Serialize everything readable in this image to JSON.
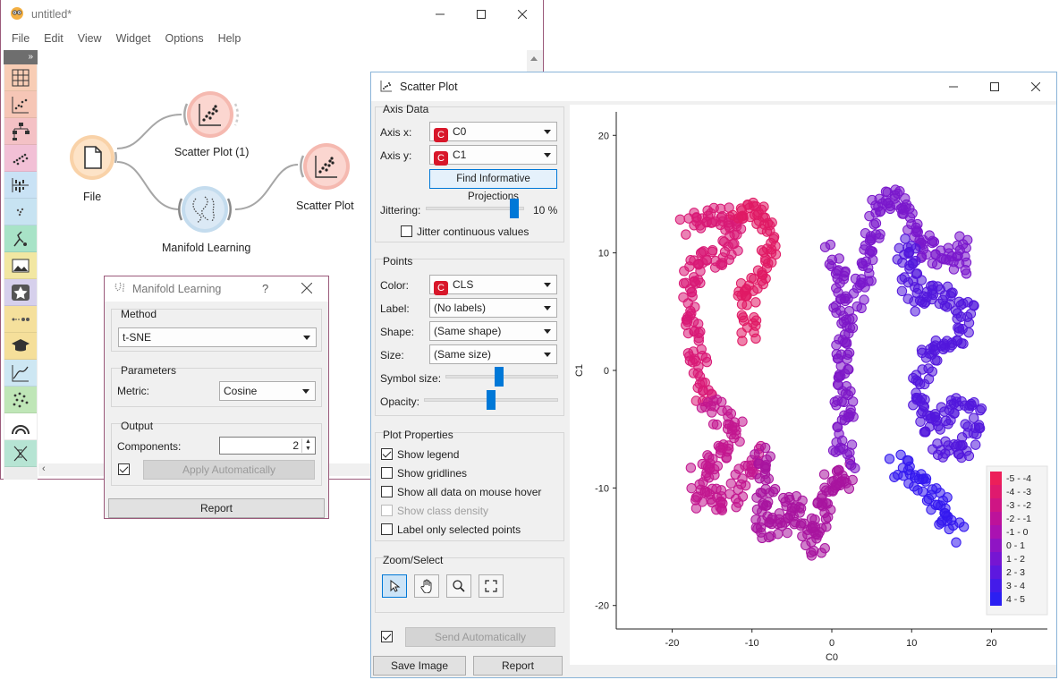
{
  "main_window": {
    "title": "untitled*",
    "menu": [
      "File",
      "Edit",
      "View",
      "Widget",
      "Options",
      "Help"
    ],
    "toolbox_toggle": "»",
    "toolbox_icons": [
      "data-table-icon",
      "scatter-plot-icon",
      "tree-icon",
      "tsne-icon",
      "distribution-icon",
      "scatter-small-icon",
      "rank-icon",
      "image-icon",
      "star-icon",
      "pipe-icon",
      "graduation-icon",
      "line-chart-icon",
      "dots-icon",
      "rainbow-icon",
      "dna-icon"
    ],
    "toolbox_colors": [
      "#f8cdb5",
      "#f6c6b6",
      "#f4c1c5",
      "#f2c0d6",
      "#c9e2f5",
      "#c7e3f2",
      "#a8e3c7",
      "#f2e7a2",
      "#d6d0ec",
      "#f5e09c",
      "#f5df9a",
      "#cde7f3",
      "#bfe6b7",
      "#ffffff",
      "#b6e4d3"
    ],
    "nodes": {
      "file": "File",
      "scatter1": "Scatter Plot (1)",
      "manifold": "Manifold Learning",
      "scatter": "Scatter Plot"
    }
  },
  "manifold_dialog": {
    "title": "Manifold Learning",
    "help": "?",
    "method_group": "Method",
    "method_value": "t-SNE",
    "parameters_group": "Parameters",
    "metric_label": "Metric:",
    "metric_value": "Cosine",
    "output_group": "Output",
    "components_label": "Components:",
    "components_value": "2",
    "apply_label": "Apply Automatically",
    "report_label": "Report"
  },
  "scatter_window": {
    "title": "Scatter Plot",
    "axis_data_group": "Axis Data",
    "axis_x_label": "Axis x:",
    "axis_x_value": "C0",
    "axis_y_label": "Axis y:",
    "axis_y_value": "C1",
    "var_badge": "C",
    "find_projections": "Find Informative Projections",
    "jittering_label": "Jittering:",
    "jittering_value": "10 %",
    "jittering_level": 0.9,
    "jitter_continuous": "Jitter continuous values",
    "points_group": "Points",
    "color_label": "Color:",
    "color_value": "CLS",
    "label_label": "Label:",
    "label_value": "(No labels)",
    "shape_label": "Shape:",
    "shape_value": "(Same shape)",
    "size_label": "Size:",
    "size_value": "(Same size)",
    "symbol_size_label": "Symbol size:",
    "symbol_size_level": 0.47,
    "opacity_label": "Opacity:",
    "opacity_level": 0.5,
    "plot_props_group": "Plot Properties",
    "show_legend": "Show legend",
    "show_gridlines": "Show gridlines",
    "show_all_data": "Show all data on mouse hover",
    "show_class_density": "Show class density",
    "label_only_selected": "Label only selected points",
    "zoom_group": "Zoom/Select",
    "zoom_tools": [
      "pointer-icon",
      "hand-icon",
      "zoom-icon",
      "fit-icon"
    ],
    "send_auto": "Send Automatically",
    "save_image": "Save Image",
    "report": "Report"
  },
  "chart_data": {
    "type": "scatter",
    "xlabel": "C0",
    "ylabel": "C1",
    "xlim": [
      -27,
      27
    ],
    "ylim": [
      -22,
      22
    ],
    "xticks": [
      "-20",
      "-10",
      "0",
      "10",
      "20"
    ],
    "yticks": [
      "20",
      "10",
      "0",
      "-10",
      "-20"
    ],
    "xtick_values": [
      -20,
      -10,
      0,
      10,
      20
    ],
    "ytick_values": [
      20,
      10,
      0,
      -10,
      -20
    ],
    "grid": false,
    "legend_position": "bottom-right",
    "legend": [
      "-5 - -4",
      "-4 - -3",
      "-3 - -2",
      "-2 - -1",
      "-1 - 0",
      "0 - 1",
      "1 - 2",
      "2 - 3",
      "3 - 4",
      "4 - 5"
    ],
    "legend_colors": [
      "#ec1f5a",
      "#df1a6e",
      "#cf1584",
      "#bd129a",
      "#aa12b1",
      "#8f14c4",
      "#7615d2",
      "#5d18df",
      "#441be9",
      "#2b1ff2"
    ],
    "clusters": [
      {
        "name": "left-arc",
        "cx": -16,
        "cy": 4,
        "color": "#d81a76",
        "path": [
          [
            -18,
            12
          ],
          [
            -17,
            13
          ],
          [
            -15,
            13
          ],
          [
            -12,
            13
          ],
          [
            -13,
            10
          ],
          [
            -16,
            9
          ],
          [
            -18,
            8
          ],
          [
            -18,
            5
          ],
          [
            -17,
            2
          ],
          [
            -16,
            -1
          ],
          [
            -16,
            -3
          ]
        ]
      },
      {
        "name": "left-lower",
        "cx": -15,
        "cy": -7,
        "color": "#c2178f",
        "path": [
          [
            -16,
            -3
          ],
          [
            -14,
            -4
          ],
          [
            -12,
            -5
          ],
          [
            -14,
            -7
          ],
          [
            -17,
            -9
          ],
          [
            -16,
            -11
          ],
          [
            -13,
            -11
          ],
          [
            -11,
            -9
          ],
          [
            -9,
            -7
          ]
        ]
      },
      {
        "name": "left-top-loop",
        "cx": -10,
        "cy": 10,
        "color": "#e01a65",
        "path": [
          [
            -12,
            13
          ],
          [
            -10,
            14
          ],
          [
            -8,
            13
          ],
          [
            -8,
            10
          ],
          [
            -9,
            8
          ],
          [
            -11,
            7
          ],
          [
            -10,
            4
          ],
          [
            -11,
            3
          ]
        ]
      },
      {
        "name": "center-bottom",
        "cx": -6,
        "cy": -12,
        "color": "#a8149f",
        "path": [
          [
            -9,
            -7
          ],
          [
            -8,
            -10
          ],
          [
            -9,
            -12
          ],
          [
            -8,
            -14
          ],
          [
            -6,
            -13
          ],
          [
            -5,
            -11
          ],
          [
            -3,
            -13
          ],
          [
            -2,
            -15
          ],
          [
            -1,
            -12
          ],
          [
            0,
            -9
          ],
          [
            1,
            -10
          ],
          [
            2,
            -8
          ]
        ]
      },
      {
        "name": "center-column",
        "cx": 1,
        "cy": 2,
        "color": "#7d17c7",
        "path": [
          [
            0,
            10
          ],
          [
            1,
            8
          ],
          [
            1,
            6
          ],
          [
            2,
            4
          ],
          [
            1,
            2
          ],
          [
            2,
            0
          ],
          [
            1,
            -2
          ],
          [
            2,
            -4
          ],
          [
            1,
            -6
          ],
          [
            2,
            -8
          ]
        ]
      },
      {
        "name": "center-top",
        "cx": 5,
        "cy": 11,
        "color": "#7a18cc",
        "path": [
          [
            3,
            6
          ],
          [
            4,
            8
          ],
          [
            5,
            10
          ],
          [
            5,
            12
          ],
          [
            6,
            14
          ],
          [
            8,
            15
          ],
          [
            9,
            14
          ],
          [
            10,
            12
          ],
          [
            12,
            10
          ],
          [
            14,
            10
          ],
          [
            16,
            9
          ],
          [
            17,
            11
          ]
        ]
      },
      {
        "name": "right-column",
        "cx": 13,
        "cy": 0,
        "color": "#5217dc",
        "path": [
          [
            10,
            11
          ],
          [
            9,
            9
          ],
          [
            10,
            7
          ],
          [
            11,
            6
          ],
          [
            13,
            7
          ],
          [
            15,
            6
          ],
          [
            17,
            5
          ],
          [
            16,
            3
          ],
          [
            14,
            2
          ],
          [
            12,
            1
          ],
          [
            11,
            -1
          ],
          [
            11,
            -3
          ],
          [
            12,
            -5
          ],
          [
            14,
            -4
          ],
          [
            16,
            -3
          ],
          [
            18,
            -4
          ],
          [
            17,
            -6
          ],
          [
            15,
            -7
          ],
          [
            13,
            -7
          ]
        ]
      },
      {
        "name": "right-bottom",
        "cx": 14,
        "cy": -11,
        "color": "#3419ef",
        "path": [
          [
            8,
            -8
          ],
          [
            10,
            -9
          ],
          [
            12,
            -10
          ],
          [
            14,
            -12
          ],
          [
            15,
            -13
          ],
          [
            16,
            -14
          ]
        ]
      }
    ]
  }
}
